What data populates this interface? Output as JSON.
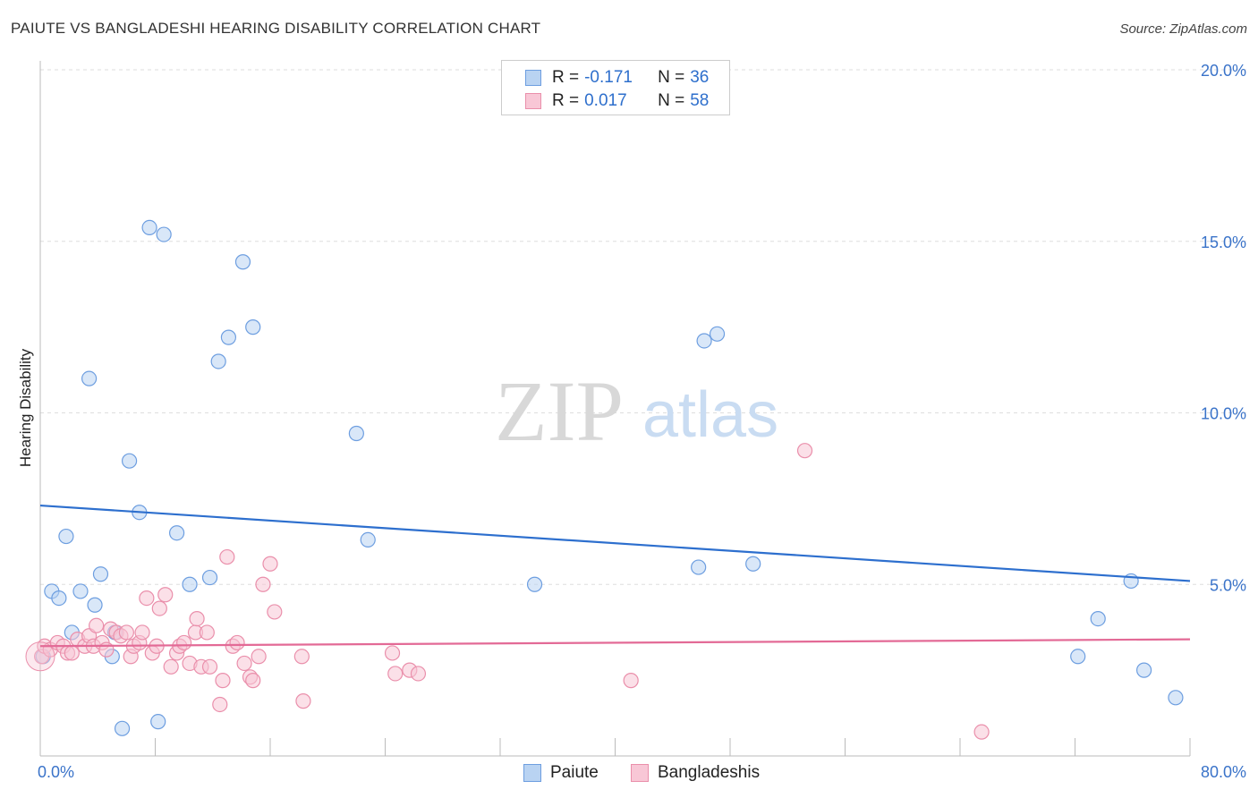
{
  "title": "PAIUTE VS BANGLADESHI HEARING DISABILITY CORRELATION CHART",
  "source": "Source: ZipAtlas.com",
  "watermark": {
    "zip": "ZIP",
    "atlas": "atlas"
  },
  "legend": {
    "rows": [
      {
        "r_label": "R =",
        "r_value": "-0.171",
        "n_label": "N =",
        "n_value": "36"
      },
      {
        "r_label": "R =",
        "r_value": "0.017",
        "n_label": "N =",
        "n_value": "58"
      }
    ]
  },
  "bottom_legend": {
    "paiute": "Paiute",
    "bangladeshis": "Bangladeshis"
  },
  "colors": {
    "paiute_fill": "#b9d3f2",
    "paiute_stroke": "#6d9ee0",
    "paiute_line": "#2d6fce",
    "bang_fill": "#f8c7d6",
    "bang_stroke": "#ea8fab",
    "bang_line": "#e36a96",
    "tick": "#3a73c9",
    "grid": "#dddddd"
  },
  "chart_data": {
    "type": "scatter",
    "title": "PAIUTE VS BANGLADESHI HEARING DISABILITY CORRELATION CHART",
    "xlabel": "",
    "ylabel": "Hearing Disability",
    "xlim": [
      0,
      80
    ],
    "ylim": [
      0,
      20
    ],
    "x_tick_labels": [
      "0.0%",
      "80.0%"
    ],
    "y_ticks": [
      5,
      10,
      15,
      20
    ],
    "y_tick_labels": [
      "5.0%",
      "10.0%",
      "15.0%",
      "20.0%"
    ],
    "grid": true,
    "series": [
      {
        "name": "Paiute",
        "r": -0.171,
        "n": 36,
        "trend": [
          [
            0,
            7.3
          ],
          [
            80,
            5.1
          ]
        ],
        "points": [
          [
            0.2,
            2.9
          ],
          [
            0.8,
            4.8
          ],
          [
            1.3,
            4.6
          ],
          [
            1.8,
            6.4
          ],
          [
            2.2,
            3.6
          ],
          [
            2.8,
            4.8
          ],
          [
            3.4,
            11.0
          ],
          [
            3.8,
            4.4
          ],
          [
            4.2,
            5.3
          ],
          [
            5.0,
            2.9
          ],
          [
            5.2,
            3.6
          ],
          [
            5.7,
            0.8
          ],
          [
            6.2,
            8.6
          ],
          [
            6.9,
            7.1
          ],
          [
            7.6,
            15.4
          ],
          [
            8.2,
            1.0
          ],
          [
            8.6,
            15.2
          ],
          [
            9.5,
            6.5
          ],
          [
            10.4,
            5.0
          ],
          [
            11.8,
            5.2
          ],
          [
            12.4,
            11.5
          ],
          [
            13.1,
            12.2
          ],
          [
            14.1,
            14.4
          ],
          [
            14.8,
            12.5
          ],
          [
            22.0,
            9.4
          ],
          [
            22.8,
            6.3
          ],
          [
            34.4,
            5.0
          ],
          [
            45.8,
            5.5
          ],
          [
            46.2,
            12.1
          ],
          [
            47.1,
            12.3
          ],
          [
            49.6,
            5.6
          ],
          [
            72.2,
            2.9
          ],
          [
            73.6,
            4.0
          ],
          [
            75.9,
            5.1
          ],
          [
            76.8,
            2.5
          ],
          [
            79.0,
            1.7
          ]
        ]
      },
      {
        "name": "Bangladeshis",
        "r": 0.017,
        "n": 58,
        "trend": [
          [
            0,
            3.2
          ],
          [
            80,
            3.4
          ]
        ],
        "points": [
          [
            0.1,
            2.9
          ],
          [
            0.3,
            3.2
          ],
          [
            0.7,
            3.1
          ],
          [
            1.2,
            3.3
          ],
          [
            1.6,
            3.2
          ],
          [
            1.9,
            3.0
          ],
          [
            2.2,
            3.0
          ],
          [
            2.6,
            3.4
          ],
          [
            3.1,
            3.2
          ],
          [
            3.4,
            3.5
          ],
          [
            3.7,
            3.2
          ],
          [
            3.9,
            3.8
          ],
          [
            4.3,
            3.3
          ],
          [
            4.6,
            3.1
          ],
          [
            4.9,
            3.7
          ],
          [
            5.3,
            3.6
          ],
          [
            5.6,
            3.5
          ],
          [
            6.0,
            3.6
          ],
          [
            6.3,
            2.9
          ],
          [
            6.5,
            3.2
          ],
          [
            6.9,
            3.3
          ],
          [
            7.1,
            3.6
          ],
          [
            7.4,
            4.6
          ],
          [
            7.8,
            3.0
          ],
          [
            8.1,
            3.2
          ],
          [
            8.3,
            4.3
          ],
          [
            8.7,
            4.7
          ],
          [
            9.1,
            2.6
          ],
          [
            9.5,
            3.0
          ],
          [
            9.7,
            3.2
          ],
          [
            10.0,
            3.3
          ],
          [
            10.4,
            2.7
          ],
          [
            10.8,
            3.6
          ],
          [
            10.9,
            4.0
          ],
          [
            11.2,
            2.6
          ],
          [
            11.6,
            3.6
          ],
          [
            11.8,
            2.6
          ],
          [
            12.5,
            1.5
          ],
          [
            12.7,
            2.2
          ],
          [
            13.0,
            5.8
          ],
          [
            13.4,
            3.2
          ],
          [
            13.7,
            3.3
          ],
          [
            14.2,
            2.7
          ],
          [
            14.6,
            2.3
          ],
          [
            14.8,
            2.2
          ],
          [
            15.2,
            2.9
          ],
          [
            15.5,
            5.0
          ],
          [
            16.0,
            5.6
          ],
          [
            16.3,
            4.2
          ],
          [
            18.2,
            2.9
          ],
          [
            18.3,
            1.6
          ],
          [
            24.5,
            3.0
          ],
          [
            24.7,
            2.4
          ],
          [
            25.7,
            2.5
          ],
          [
            26.3,
            2.4
          ],
          [
            41.1,
            2.2
          ],
          [
            53.2,
            8.9
          ],
          [
            65.5,
            0.7
          ]
        ]
      }
    ]
  }
}
